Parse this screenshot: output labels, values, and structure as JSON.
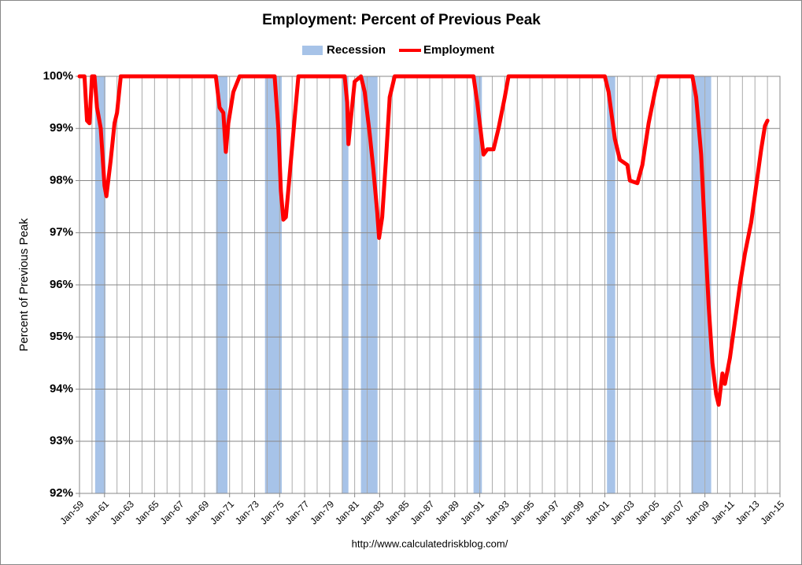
{
  "chart_data": {
    "type": "line",
    "title": "Employment: Percent of Previous Peak",
    "ylabel": "Percent of Previous Peak",
    "source": "http://www.calculatedriskblog.com/",
    "xlim": [
      1959,
      2015
    ],
    "xticks": [
      {
        "value": 1959,
        "label": "Jan-59"
      },
      {
        "value": 1961,
        "label": "Jan-61"
      },
      {
        "value": 1963,
        "label": "Jan-63"
      },
      {
        "value": 1965,
        "label": "Jan-65"
      },
      {
        "value": 1967,
        "label": "Jan-67"
      },
      {
        "value": 1969,
        "label": "Jan-69"
      },
      {
        "value": 1971,
        "label": "Jan-71"
      },
      {
        "value": 1973,
        "label": "Jan-73"
      },
      {
        "value": 1975,
        "label": "Jan-75"
      },
      {
        "value": 1977,
        "label": "Jan-77"
      },
      {
        "value": 1979,
        "label": "Jan-79"
      },
      {
        "value": 1981,
        "label": "Jan-81"
      },
      {
        "value": 1983,
        "label": "Jan-83"
      },
      {
        "value": 1985,
        "label": "Jan-85"
      },
      {
        "value": 1987,
        "label": "Jan-87"
      },
      {
        "value": 1989,
        "label": "Jan-89"
      },
      {
        "value": 1991,
        "label": "Jan-91"
      },
      {
        "value": 1993,
        "label": "Jan-93"
      },
      {
        "value": 1995,
        "label": "Jan-95"
      },
      {
        "value": 1997,
        "label": "Jan-97"
      },
      {
        "value": 1999,
        "label": "Jan-99"
      },
      {
        "value": 2001,
        "label": "Jan-01"
      },
      {
        "value": 2003,
        "label": "Jan-03"
      },
      {
        "value": 2005,
        "label": "Jan-05"
      },
      {
        "value": 2007,
        "label": "Jan-07"
      },
      {
        "value": 2009,
        "label": "Jan-09"
      },
      {
        "value": 2011,
        "label": "Jan-11"
      },
      {
        "value": 2013,
        "label": "Jan-13"
      },
      {
        "value": 2015,
        "label": "Jan-15"
      }
    ],
    "xminor_ticks": [
      1960,
      1962,
      1964,
      1966,
      1968,
      1970,
      1972,
      1974,
      1976,
      1978,
      1980,
      1982,
      1984,
      1986,
      1988,
      1990,
      1992,
      1994,
      1996,
      1998,
      2000,
      2002,
      2004,
      2006,
      2008,
      2010,
      2012,
      2014
    ],
    "ylim": [
      92,
      100
    ],
    "yticks": [
      {
        "value": 92,
        "label": "92%"
      },
      {
        "value": 93,
        "label": "93%"
      },
      {
        "value": 94,
        "label": "94%"
      },
      {
        "value": 95,
        "label": "95%"
      },
      {
        "value": 96,
        "label": "96%"
      },
      {
        "value": 97,
        "label": "97%"
      },
      {
        "value": 98,
        "label": "98%"
      },
      {
        "value": 99,
        "label": "99%"
      },
      {
        "value": 100,
        "label": "100%"
      }
    ],
    "grid": true,
    "legend": "top",
    "recessions": {
      "name": "Recession",
      "color": "#a7c3e8",
      "spans": [
        [
          1960.25,
          1961.08
        ],
        [
          1969.92,
          1970.83
        ],
        [
          1973.83,
          1975.17
        ],
        [
          1980.0,
          1980.5
        ],
        [
          1981.5,
          1982.83
        ],
        [
          1990.5,
          1991.17
        ],
        [
          2001.17,
          2001.83
        ],
        [
          2007.92,
          2009.5
        ]
      ]
    },
    "x": [
      1959.0,
      1959.4,
      1959.6,
      1959.8,
      1960.0,
      1960.2,
      1960.4,
      1960.7,
      1961.0,
      1961.15,
      1961.5,
      1961.8,
      1962.0,
      1962.3,
      1969.9,
      1970.2,
      1970.5,
      1970.7,
      1970.9,
      1971.3,
      1971.8,
      1974.6,
      1974.9,
      1975.1,
      1975.3,
      1975.5,
      1975.8,
      1976.2,
      1976.5,
      1980.2,
      1980.4,
      1980.5,
      1980.7,
      1981.0,
      1981.5,
      1981.8,
      1982.2,
      1982.5,
      1982.8,
      1982.95,
      1983.2,
      1983.5,
      1983.8,
      1984.2,
      1990.5,
      1990.8,
      1991.1,
      1991.3,
      1991.6,
      1992.1,
      1992.5,
      1993.0,
      1993.3,
      2001.0,
      2001.3,
      2001.8,
      2002.2,
      2002.8,
      2003.0,
      2003.6,
      2004.0,
      2004.5,
      2005.0,
      2005.3,
      2008.0,
      2008.3,
      2008.7,
      2009.0,
      2009.3,
      2009.6,
      2009.9,
      2010.1,
      2010.4,
      2010.6,
      2011.0,
      2011.4,
      2011.8,
      2012.2,
      2012.7,
      2013.1,
      2013.5,
      2013.8,
      2014.0
    ],
    "series": [
      {
        "name": "Employment",
        "color": "#ff0000",
        "values": [
          100,
          100,
          99.15,
          99.1,
          100,
          100,
          99.4,
          99.0,
          97.9,
          97.7,
          98.4,
          99.1,
          99.3,
          100,
          100,
          99.4,
          99.3,
          98.55,
          99.1,
          99.7,
          100,
          100,
          99.0,
          97.8,
          97.25,
          97.3,
          98.1,
          99.2,
          100,
          100,
          99.5,
          98.7,
          99.2,
          99.9,
          100,
          99.7,
          98.9,
          98.2,
          97.4,
          96.9,
          97.3,
          98.4,
          99.6,
          100,
          100,
          99.5,
          98.9,
          98.5,
          98.6,
          98.6,
          99.0,
          99.6,
          100,
          100,
          99.7,
          98.8,
          98.4,
          98.3,
          98.0,
          97.95,
          98.3,
          99.1,
          99.7,
          100,
          100,
          99.6,
          98.5,
          97.0,
          95.6,
          94.5,
          93.9,
          93.7,
          94.3,
          94.1,
          94.6,
          95.3,
          96.0,
          96.6,
          97.2,
          97.9,
          98.6,
          99.05,
          99.15
        ]
      }
    ]
  }
}
